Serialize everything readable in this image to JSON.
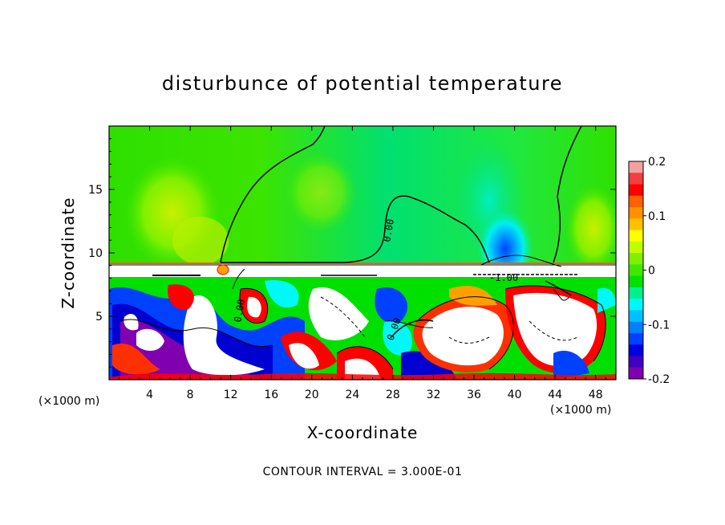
{
  "chart_data": {
    "type": "heatmap",
    "title": "disturbunce of potential temperature",
    "xlabel": "X-coordinate",
    "ylabel": "Z-coordinate",
    "x_unit": "(×1000 m)",
    "z_unit": "(×1000 m)",
    "x_range": [
      0,
      50
    ],
    "z_range": [
      0,
      20
    ],
    "x_ticks": [
      4,
      8,
      12,
      16,
      20,
      24,
      28,
      32,
      36,
      40,
      44,
      48
    ],
    "z_ticks": [
      5,
      10,
      15
    ],
    "colorbar": {
      "range": [
        -0.2,
        0.2
      ],
      "tick_values": [
        0.2,
        0.1,
        0,
        -0.1,
        -0.2
      ],
      "tick_labels": [
        "0.2",
        "0.1",
        "0",
        "-0.1",
        "-0.2"
      ],
      "colors": [
        "#f4a0a0",
        "#f04040",
        "#ff0000",
        "#ff6000",
        "#ff9000",
        "#ffc000",
        "#ffff00",
        "#c0ff00",
        "#80f000",
        "#40e800",
        "#00e000",
        "#00f090",
        "#00f8f8",
        "#00c0ff",
        "#0080ff",
        "#0040ff",
        "#0000e0",
        "#4000c0",
        "#8000b0"
      ]
    },
    "contour_labels": [
      "0.00",
      "0.00",
      "-1.00",
      "0.00"
    ],
    "contour_interval_text": "CONTOUR INTERVAL = 3.000E-01"
  }
}
